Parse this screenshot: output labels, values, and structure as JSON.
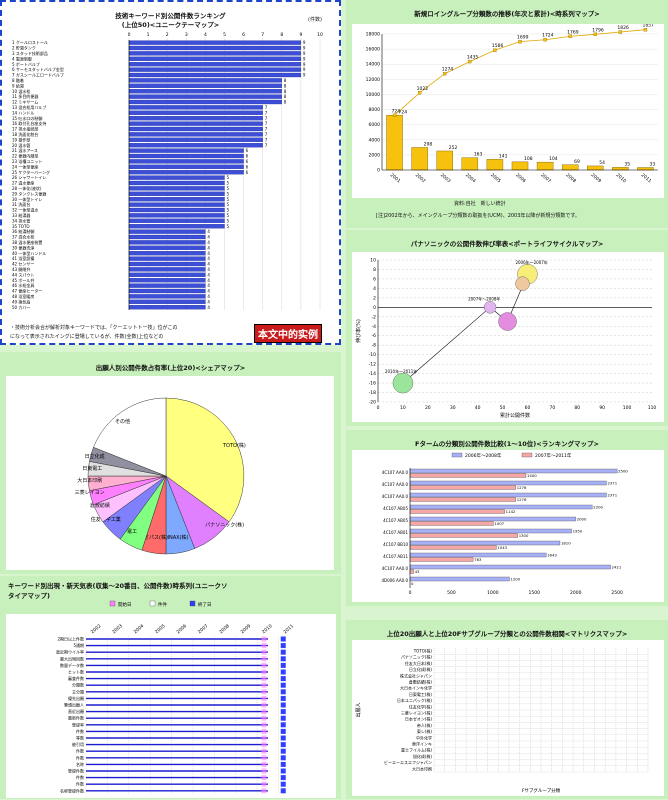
{
  "p1": {
    "title1": "技術キーワード別公開件数ランキング",
    "title2": "(上位50)<ユニークテーマップ>",
    "unit": "(件数)",
    "axis_ticks": [
      0,
      1,
      2,
      3,
      4,
      5,
      6,
      7,
      8,
      9,
      10
    ],
    "note_line1": "・技術分析会合が解析対象キーワードでは、「クーエットトー技」位がこの",
    "note_line2": "になって表示されたイングに登場しているが、件数(全数)上位などの",
    "stamp": "本文中的实例",
    "chart_data": {
      "type": "bar",
      "labels": [
        "1 クールロストール",
        "2 貯湯タンク",
        "3 スタッド技術部品",
        "4 電源制御",
        "5 ボートバルブ",
        "6 サーモスタットバルブ金型",
        "7 ガスシールエロードバルブ",
        "8 融着",
        "9 給湯",
        "10 温水栓",
        "11 多目的便器",
        "12 ミキサーム",
        "13 混合栓用バルブ",
        "14 ハンドル",
        "15 吐水口の制御",
        "16 取付孔台座支持",
        "17 排水接続部",
        "18 洗面化粧台",
        "19 操作部",
        "20 温水管",
        "21 温水アース",
        "22 便器内蔵型",
        "23 浴槽ユニット",
        "24 一体型便座",
        "25 ケクターバーング",
        "26 シャワートイレ",
        "27 温水便座",
        "28 一体化(液状)",
        "29 タンクレス便器",
        "30 一体型トイレ",
        "31 洗面台",
        "32 一体型温水",
        "33 給湯器",
        "34 排水管",
        "35 TOTO",
        "36 給湯制御",
        "37 混合水栓",
        "38 温水便座装置",
        "39 便器洗浄",
        "40 一体型ハンドル",
        "41 浴室設備",
        "42 センサー",
        "43 開閉弁",
        "44 スパウト",
        "45 ボール弁",
        "46 水栓金具",
        "47 便座ヒーター",
        "48 浴室暖房",
        "49 換気扇",
        "50 カバー"
      ],
      "values": [
        9,
        9,
        9,
        9,
        9,
        9,
        9,
        8,
        8,
        8,
        8,
        8,
        7,
        7,
        7,
        7,
        7,
        7,
        7,
        7,
        6,
        6,
        6,
        6,
        6,
        5,
        5,
        5,
        5,
        5,
        5,
        5,
        5,
        5,
        5,
        4,
        4,
        4,
        4,
        4,
        4,
        4,
        4,
        4,
        4,
        4,
        4,
        4,
        4,
        4
      ],
      "xlim": [
        0,
        10
      ]
    }
  },
  "p2": {
    "title": "新規ロイングループ分類数の推移(年次と累計)<時系列マップ>",
    "y_ticks": [
      "18000",
      "16000",
      "14000",
      "12000",
      "10000",
      "8000",
      "6000",
      "4000",
      "2000",
      "0"
    ],
    "footer": "資料:自社　新しい統計",
    "note": "[注]2002年から、メイングループ分類数の取扱を(UCM)、2003年以降が新規分類数です。",
    "chart_data": {
      "type": "bar",
      "categories": [
        "2001",
        "2002",
        "2003",
        "2004",
        "2005",
        "2006",
        "2007",
        "2008",
        "2009",
        "2010",
        "2011"
      ],
      "values": [
        724,
        298,
        252,
        163,
        141,
        108,
        104,
        69,
        54,
        35,
        33
      ],
      "cumulative": [
        724,
        1022,
        1274,
        1435,
        1586,
        1699,
        1724,
        1769,
        1796,
        1826,
        1857
      ],
      "ylim": [
        0,
        1800
      ]
    }
  },
  "p3": {
    "title": "パナソニックの公開件数伸び率表<ポートライフサイクルマップ>",
    "ylabel": "伸び率(%)",
    "xlabel": "累計公開件数",
    "x_ticks": [
      "0",
      "10",
      "20",
      "30",
      "40",
      "50",
      "60",
      "70",
      "80",
      "90",
      "100",
      "110"
    ],
    "y_ticks": [
      "10",
      "8",
      "6",
      "4",
      "2",
      "0",
      "-2",
      "-4",
      "-6",
      "-8",
      "-10",
      "-12",
      "-14",
      "-16",
      "-18",
      "-20"
    ],
    "labels": [
      "2010年～2011年",
      "2007年～2008年",
      "2006年～2007年"
    ],
    "chart_data": {
      "type": "scatter",
      "points": [
        {
          "x": 10,
          "y": -16,
          "r": 10,
          "color": "#9be49b"
        },
        {
          "x": 45,
          "y": 0,
          "r": 6,
          "color": "#e2b4f0"
        },
        {
          "x": 52,
          "y": -3,
          "r": 9,
          "color": "#e48de0"
        },
        {
          "x": 60,
          "y": 7,
          "r": 10,
          "color": "#f7ee7a"
        },
        {
          "x": 58,
          "y": 5,
          "r": 7,
          "color": "#f0c8a0"
        }
      ],
      "xlim": [
        0,
        110
      ],
      "ylim": [
        -20,
        10
      ]
    }
  },
  "p4": {
    "title": "出願人別公開件数占有率(上位20)<シェアマップ>",
    "chart_data": {
      "type": "pie",
      "labels": [
        "TOTO(株)",
        "パナソニック(株)",
        "INAX(株)",
        "オパス(株)",
        "松下電工",
        "住友化学工業",
        "倉敷紡績",
        "三菱レイヨン",
        "大日本印刷",
        "日東電工",
        "日立化成",
        "その他"
      ],
      "values": [
        35,
        9,
        6,
        5,
        5,
        5,
        4,
        3,
        3,
        3,
        3,
        19
      ],
      "colors": [
        "#ffff80",
        "#e080ff",
        "#7fa8ff",
        "#ff6a6a",
        "#80ff80",
        "#8080ff",
        "#ffc0ff",
        "#ff80ff",
        "#ffb0d0",
        "#e0e0e0",
        "#9090a0",
        "#ffffff"
      ]
    }
  },
  "p5": {
    "title": "Fタームの分類別公開件数比較(1～10位)<ランキングマップ>",
    "legend": [
      "2006年～2008年",
      "2007年～2011年"
    ],
    "x_ticks": [
      "0",
      "500",
      "1000",
      "1500",
      "2000",
      "2500"
    ],
    "chart_data": {
      "type": "bar",
      "categories": [
        "4C107 AA0.0",
        "4C107 AA0.0",
        "4C107 AA0.0",
        "4C107 AB05",
        "4C107 AB05",
        "4C107 AB01",
        "4C107 BB10",
        "4C107 AB11",
        "4C107 AA0.0",
        "4D006 AA0.0"
      ],
      "series": [
        {
          "name": "2006年～2008年",
          "values": [
            2500,
            2371,
            2371,
            2200,
            2000,
            1950,
            1810,
            1643,
            2421,
            1200
          ]
        },
        {
          "name": "2007年～2011年",
          "values": [
            1400,
            1276,
            1276,
            1142,
            1007,
            1300,
            1043,
            763,
            43,
            0
          ]
        }
      ],
      "xlim": [
        0,
        2800
      ]
    }
  },
  "p6": {
    "title1": "キーワード別出現・新天気表(収集～20番目、公開件数)時系列(ユニークソ",
    "title2": "タイアマップ)",
    "legend": [
      "開始日",
      "件件",
      "終了日"
    ],
    "rows": [
      "2期日以上件数",
      "5通期",
      "直近期ウイル率",
      "最大出現回数",
      "数量データ数",
      "ヒット数",
      "審査件数",
      "分類数",
      "主分類",
      "優先出願",
      "筆頭出願人",
      "直近出願",
      "最新件数",
      "登録率",
      "件数",
      "等数",
      "被引用",
      "件数",
      "件数",
      "名称",
      "登録件数",
      "件数",
      "件数",
      "名称登録件数"
    ],
    "columns": [
      "2002",
      "2003",
      "2004",
      "2005",
      "2006",
      "2007",
      "2008",
      "2009",
      "2010",
      "2011"
    ]
  },
  "p7": {
    "title": "上位20出願人と上位20Fサブグループ分類との公開件数相関<マトリクスマップ>",
    "ylabel": "出願人",
    "xlabel": "Fサブグループ分類",
    "rows": [
      "TOTO(株)",
      "パナソニック(株)",
      "住友大日本(株)",
      "日立化成(株)",
      "株式会社ジャパン",
      "倉敷紡績(株)",
      "大日本インキ化学",
      "日東電工(株)",
      "日本ユニパック(株)",
      "住友化学(株)",
      "三菱レイヨン(株)",
      "日本ゼオン(株)",
      "帝人(株)",
      "東レ(株)",
      "中外化学",
      "東洋インキ",
      "富士フイルム(株)",
      "旭化成(株)",
      "ビーエーエスエフジャパン",
      "大日本印刷"
    ]
  }
}
